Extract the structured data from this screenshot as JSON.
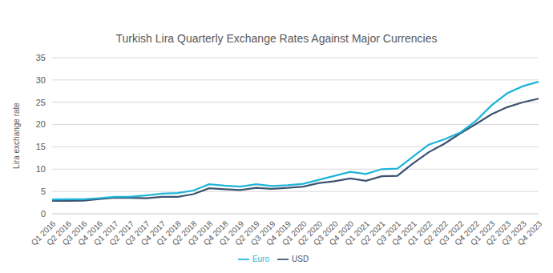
{
  "chart_data": {
    "type": "line",
    "title": "Turkish Lira Quarterly Exchange Rates Against Major Currencies",
    "ylabel": "Lira exchange rate",
    "categories": [
      "Q1 2016",
      "Q2 2016",
      "Q3 2016",
      "Q4 2016",
      "Q1 2017",
      "Q2 2017",
      "Q3 2017",
      "Q4 2017",
      "Q1 2018",
      "Q2 2018",
      "Q3 2018",
      "Q4 2018",
      "Q1 2019",
      "Q2 2019",
      "Q3 2019",
      "Q4 2019",
      "Q1 2020",
      "Q2 2020",
      "Q3 2020",
      "Q4 2020",
      "Q1 2021",
      "Q2 2021",
      "Q3 2021",
      "Q4 2021",
      "Q1 2022",
      "Q2 2022",
      "Q3 2022",
      "Q4 2022",
      "Q1 2023",
      "Q2 2023",
      "Q3 2023",
      "Q4 2023"
    ],
    "series": [
      {
        "name": "USD",
        "color": "#3e5470",
        "values": [
          2.9,
          2.9,
          2.95,
          3.3,
          3.6,
          3.55,
          3.5,
          3.8,
          3.8,
          4.4,
          5.7,
          5.5,
          5.3,
          5.8,
          5.6,
          5.8,
          6.1,
          6.9,
          7.3,
          7.9,
          7.4,
          8.4,
          8.5,
          11.3,
          13.8,
          15.7,
          18.0,
          20.1,
          22.3,
          23.9,
          25.0,
          25.8
        ]
      },
      {
        "name": "Euro",
        "color": "#1fb4d8",
        "values": [
          3.2,
          3.25,
          3.25,
          3.5,
          3.8,
          3.85,
          4.1,
          4.5,
          4.65,
          5.2,
          6.6,
          6.3,
          6.1,
          6.6,
          6.2,
          6.4,
          6.7,
          7.6,
          8.5,
          9.4,
          8.9,
          10.0,
          10.1,
          12.8,
          15.5,
          16.7,
          18.2,
          20.8,
          24.3,
          27.0,
          28.6,
          29.6
        ]
      }
    ],
    "ylim": [
      0,
      35
    ],
    "yticks": [
      0,
      5,
      10,
      15,
      20,
      25,
      30,
      35
    ],
    "grid": true,
    "legend": "bottom"
  }
}
